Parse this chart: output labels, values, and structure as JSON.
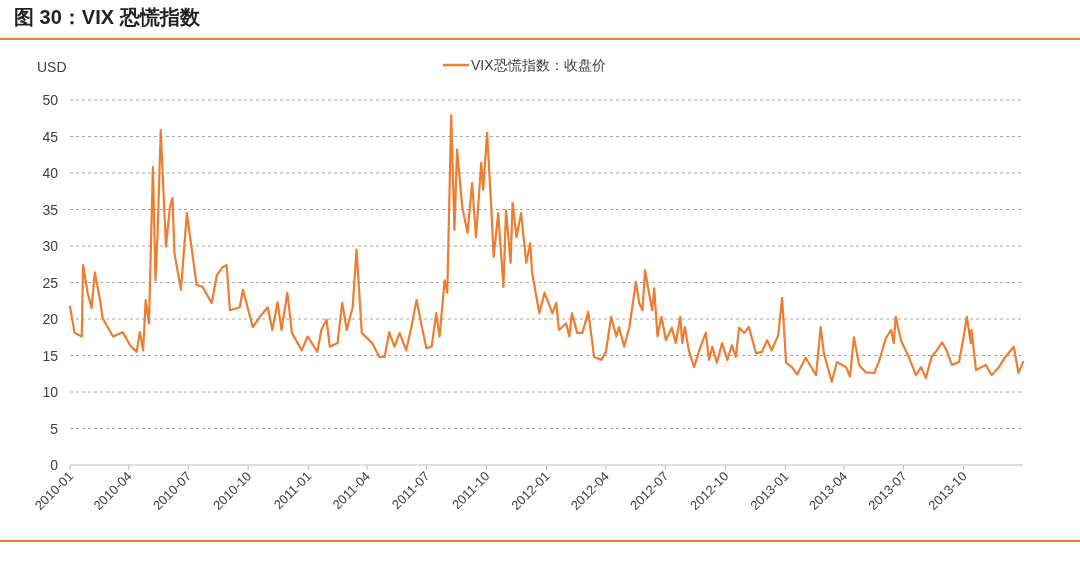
{
  "chart_data": {
    "type": "line",
    "title": "图 30：VIX 恐慌指数",
    "ylabel": "USD",
    "legend": "top",
    "grid": "y",
    "marker": "none",
    "line_style": "solid",
    "ylim": [
      0,
      50
    ],
    "yticks": [
      0,
      5,
      10,
      15,
      20,
      25,
      30,
      35,
      40,
      45,
      50
    ],
    "xlim": [
      "2010-01-01",
      "2013-12-31"
    ],
    "xticks": [
      "2010-01",
      "2010-04",
      "2010-07",
      "2010-10",
      "2011-01",
      "2011-04",
      "2011-07",
      "2011-10",
      "2012-01",
      "2012-04",
      "2012-07",
      "2012-10",
      "2013-01",
      "2013-04",
      "2013-07",
      "2013-10"
    ],
    "x": [
      "2010-01-01",
      "2010-01-08",
      "2010-01-19",
      "2010-01-21",
      "2010-01-28",
      "2010-02-03",
      "2010-02-08",
      "2010-02-16",
      "2010-02-20",
      "2010-03-08",
      "2010-03-23",
      "2010-04-03",
      "2010-04-13",
      "2010-04-18",
      "2010-04-23",
      "2010-04-27",
      "2010-05-02",
      "2010-05-08",
      "2010-05-12",
      "2010-05-15",
      "2010-05-20",
      "2010-05-28",
      "2010-06-03",
      "2010-06-07",
      "2010-06-10",
      "2010-06-20",
      "2010-06-29",
      "2010-07-06",
      "2010-07-14",
      "2010-07-23",
      "2010-08-06",
      "2010-08-14",
      "2010-08-23",
      "2010-08-29",
      "2010-09-03",
      "2010-09-18",
      "2010-09-23",
      "2010-10-08",
      "2010-10-19",
      "2010-10-31",
      "2010-11-07",
      "2010-11-15",
      "2010-11-21",
      "2010-11-30",
      "2010-12-07",
      "2010-12-22",
      "2010-12-31",
      "2011-01-15",
      "2011-01-21",
      "2011-01-29",
      "2011-02-03",
      "2011-02-15",
      "2011-02-22",
      "2011-03-01",
      "2011-03-10",
      "2011-03-16",
      "2011-03-24",
      "2011-04-09",
      "2011-04-20",
      "2011-04-28",
      "2011-05-05",
      "2011-05-13",
      "2011-05-21",
      "2011-05-31",
      "2011-06-08",
      "2011-06-16",
      "2011-06-23",
      "2011-07-01",
      "2011-07-09",
      "2011-07-16",
      "2011-07-21",
      "2011-07-29",
      "2011-08-02",
      "2011-08-08",
      "2011-08-13",
      "2011-08-17",
      "2011-08-25",
      "2011-09-02",
      "2011-09-09",
      "2011-09-15",
      "2011-09-23",
      "2011-09-26",
      "2011-10-02",
      "2011-10-08",
      "2011-10-12",
      "2011-10-19",
      "2011-10-27",
      "2011-10-31",
      "2011-11-07",
      "2011-11-10",
      "2011-11-16",
      "2011-11-23",
      "2011-12-01",
      "2011-12-07",
      "2011-12-10",
      "2011-12-21",
      "2011-12-29",
      "2012-01-10",
      "2012-01-16",
      "2012-01-20",
      "2012-01-31",
      "2012-02-05",
      "2012-02-09",
      "2012-02-17",
      "2012-02-25",
      "2012-03-05",
      "2012-03-14",
      "2012-03-25",
      "2012-04-01",
      "2012-04-09",
      "2012-04-17",
      "2012-04-21",
      "2012-04-29",
      "2012-05-07",
      "2012-05-17",
      "2012-05-22",
      "2012-05-27",
      "2012-05-31",
      "2012-06-06",
      "2012-06-11",
      "2012-06-14",
      "2012-06-19",
      "2012-06-25",
      "2012-07-02",
      "2012-07-11",
      "2012-07-17",
      "2012-07-24",
      "2012-07-27",
      "2012-07-31",
      "2012-08-06",
      "2012-08-14",
      "2012-08-22",
      "2012-09-01",
      "2012-09-06",
      "2012-09-11",
      "2012-09-18",
      "2012-09-26",
      "2012-10-04",
      "2012-10-11",
      "2012-10-17",
      "2012-10-22",
      "2012-10-30",
      "2012-11-06",
      "2012-11-17",
      "2012-11-26",
      "2012-12-04",
      "2012-12-11",
      "2012-12-21",
      "2012-12-27",
      "2013-01-02",
      "2013-01-11",
      "2013-01-19",
      "2013-02-01",
      "2013-02-17",
      "2013-02-24",
      "2013-03-01",
      "2013-03-13",
      "2013-03-21",
      "2013-04-04",
      "2013-04-10",
      "2013-04-16",
      "2013-04-24",
      "2013-05-04",
      "2013-05-17",
      "2013-05-24",
      "2013-06-04",
      "2013-06-12",
      "2013-06-16",
      "2013-06-19",
      "2013-06-27",
      "2013-07-09",
      "2013-07-20",
      "2013-07-28",
      "2013-08-04",
      "2013-08-13",
      "2013-08-21",
      "2013-08-29",
      "2013-09-05",
      "2013-09-13",
      "2013-09-24",
      "2013-10-01",
      "2013-10-06",
      "2013-10-12",
      "2013-10-13",
      "2013-10-20",
      "2013-11-04",
      "2013-11-13",
      "2013-11-24",
      "2013-12-04",
      "2013-12-17",
      "2013-12-24",
      "2013-12-31"
    ],
    "series": [
      {
        "name": "VIX恐慌指数：收盘价",
        "color": "#ed7d31",
        "values": [
          21.7,
          18.1,
          17.6,
          27.4,
          23.6,
          21.5,
          26.4,
          22.6,
          20.1,
          17.6,
          18.2,
          16.4,
          15.5,
          18.2,
          15.7,
          22.6,
          19.4,
          40.8,
          25.3,
          31.2,
          45.9,
          29.9,
          35.3,
          36.6,
          29.0,
          24.0,
          34.5,
          29.9,
          24.7,
          24.4,
          22.2,
          26.0,
          27.1,
          27.4,
          21.2,
          21.6,
          24.0,
          18.9,
          20.3,
          21.6,
          18.5,
          22.3,
          18.5,
          23.6,
          18.1,
          15.7,
          17.6,
          15.5,
          18.5,
          19.9,
          16.2,
          16.7,
          22.2,
          18.5,
          21.6,
          29.5,
          18.1,
          16.7,
          14.8,
          14.8,
          18.2,
          16.2,
          18.1,
          15.7,
          18.9,
          22.6,
          19.4,
          16.0,
          16.2,
          20.8,
          17.6,
          25.3,
          23.6,
          47.9,
          32.2,
          43.2,
          35.3,
          31.8,
          38.6,
          31.2,
          41.4,
          37.7,
          45.5,
          35.9,
          28.5,
          34.5,
          24.4,
          34.9,
          27.7,
          35.9,
          31.2,
          34.5,
          27.7,
          30.4,
          26.3,
          20.8,
          23.6,
          20.8,
          22.2,
          18.5,
          19.4,
          17.6,
          20.8,
          18.1,
          18.1,
          21.0,
          14.8,
          14.4,
          15.5,
          20.3,
          17.6,
          18.9,
          16.2,
          18.9,
          25.1,
          22.2,
          21.2,
          26.7,
          23.6,
          21.2,
          24.2,
          17.6,
          20.3,
          17.1,
          18.8,
          16.7,
          20.3,
          16.7,
          18.9,
          15.7,
          13.4,
          15.7,
          18.1,
          14.4,
          16.2,
          14.0,
          16.7,
          14.4,
          16.4,
          14.8,
          18.8,
          18.1,
          18.9,
          15.3,
          15.5,
          17.1,
          15.7,
          17.8,
          22.9,
          14.0,
          13.4,
          12.4,
          14.7,
          12.3,
          18.9,
          15.3,
          11.4,
          14.1,
          13.4,
          12.1,
          17.5,
          13.7,
          12.7,
          12.6,
          14.1,
          17.4,
          18.5,
          16.7,
          20.3,
          17.1,
          14.8,
          12.3,
          13.4,
          11.9,
          14.8,
          15.7,
          16.8,
          15.7,
          13.7,
          14.1,
          17.5,
          20.3,
          16.7,
          18.5,
          13.0,
          13.7,
          12.3,
          13.4,
          14.8,
          16.2,
          12.6,
          14.1
        ]
      }
    ]
  }
}
